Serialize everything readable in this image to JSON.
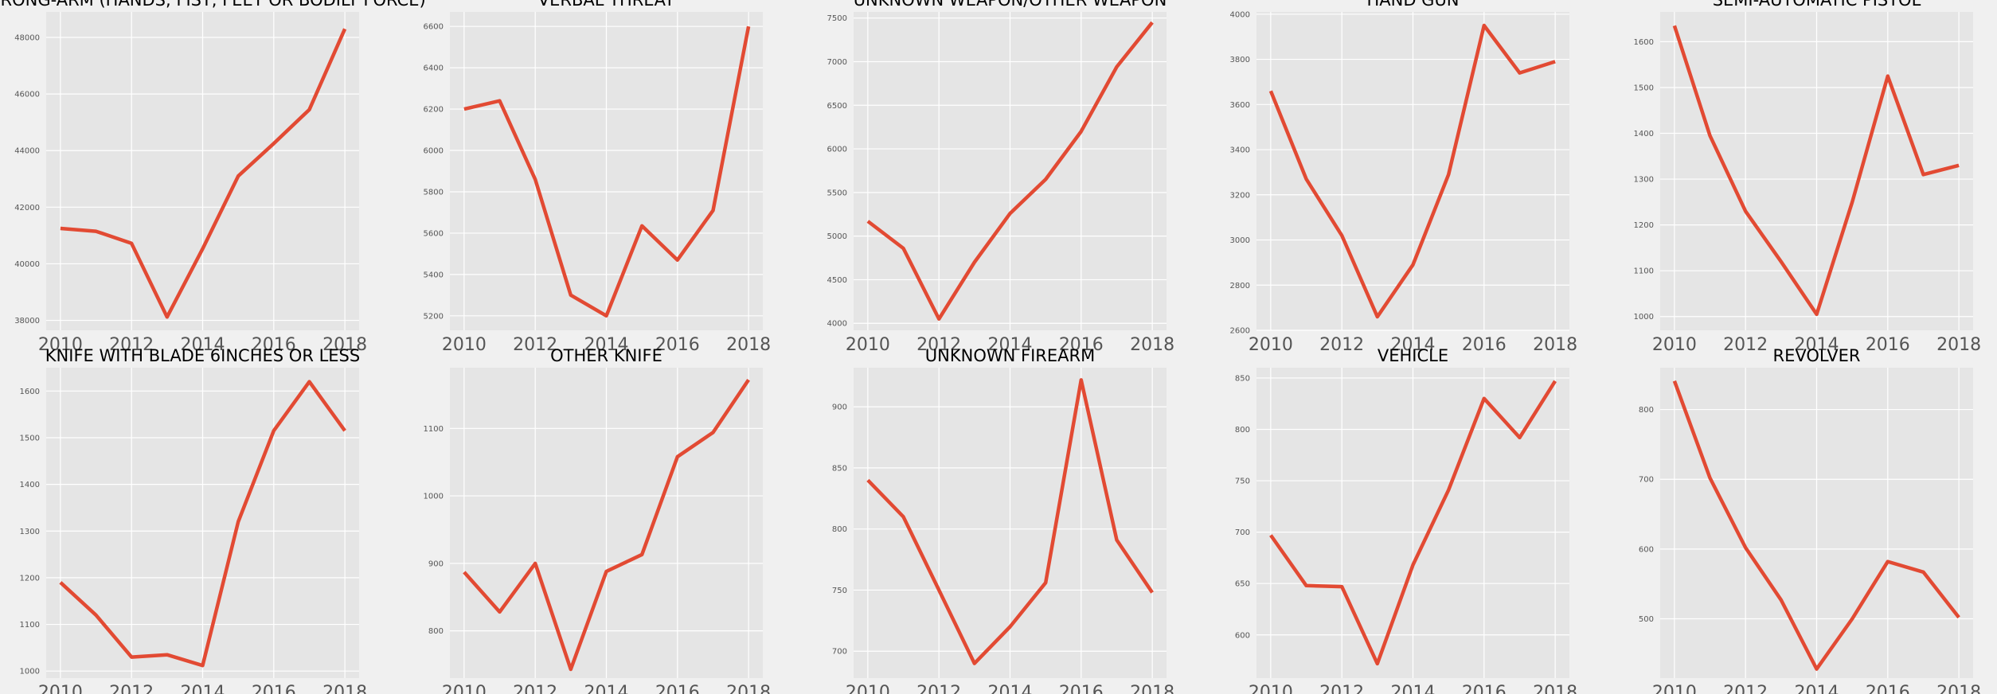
{
  "colors": {
    "figure_bg": "#f0f0f0",
    "axes_bg": "#e5e5e5",
    "grid": "#ffffff",
    "line": "#e24a33"
  },
  "chart_data": [
    {
      "type": "line",
      "title": "STRONG-ARM (HANDS, FIST, FEET OR BODILY FORCE)",
      "x": [
        2010,
        2011,
        2012,
        2013,
        2014,
        2015,
        2016,
        2017,
        2018
      ],
      "values": [
        41250,
        41150,
        40720,
        38120,
        40530,
        43100,
        44250,
        45450,
        48300
      ],
      "xlim": [
        2009.6,
        2018.4
      ],
      "ylim": [
        37650,
        48900
      ],
      "xticks": [
        "2010",
        "2012",
        "2014",
        "2016",
        "2018"
      ],
      "yticks": [
        "38000",
        "40000",
        "42000",
        "44000",
        "46000",
        "48000"
      ],
      "grid": true
    },
    {
      "type": "line",
      "title": "VERBAL THREAT",
      "x": [
        2010,
        2011,
        2012,
        2013,
        2014,
        2015,
        2016,
        2017,
        2018
      ],
      "values": [
        6200,
        6240,
        5860,
        5300,
        5200,
        5635,
        5470,
        5710,
        6600
      ],
      "xlim": [
        2009.6,
        2018.4
      ],
      "ylim": [
        5130,
        6670
      ],
      "xticks": [
        "2010",
        "2012",
        "2014",
        "2016",
        "2018"
      ],
      "yticks": [
        "5200",
        "5400",
        "5600",
        "5800",
        "6000",
        "6200",
        "6400",
        "6600"
      ],
      "grid": true
    },
    {
      "type": "line",
      "title": "UNKNOWN WEAPON/OTHER WEAPON",
      "x": [
        2010,
        2011,
        2012,
        2013,
        2014,
        2015,
        2016,
        2017,
        2018
      ],
      "values": [
        5170,
        4860,
        4050,
        4700,
        5260,
        5650,
        6200,
        6940,
        7450
      ],
      "xlim": [
        2009.6,
        2018.4
      ],
      "ylim": [
        3920,
        7570
      ],
      "xticks": [
        "2010",
        "2012",
        "2014",
        "2016",
        "2018"
      ],
      "yticks": [
        "4000",
        "4500",
        "5000",
        "5500",
        "6000",
        "6500",
        "7000",
        "7500"
      ],
      "grid": true
    },
    {
      "type": "line",
      "title": "HAND GUN",
      "x": [
        2010,
        2011,
        2012,
        2013,
        2014,
        2015,
        2016,
        2017,
        2018
      ],
      "values": [
        3660,
        3270,
        3020,
        2660,
        2890,
        3290,
        3950,
        3740,
        3790
      ],
      "xlim": [
        2009.6,
        2018.4
      ],
      "ylim": [
        2600,
        4010
      ],
      "xticks": [
        "2010",
        "2012",
        "2014",
        "2016",
        "2018"
      ],
      "yticks": [
        "2600",
        "2800",
        "3000",
        "3200",
        "3400",
        "3600",
        "3800",
        "4000"
      ],
      "grid": true
    },
    {
      "type": "line",
      "title": "SEMI-AUTOMATIC PISTOL",
      "x": [
        2010,
        2011,
        2012,
        2013,
        2014,
        2015,
        2016,
        2017,
        2018
      ],
      "values": [
        1635,
        1395,
        1230,
        1120,
        1005,
        1250,
        1525,
        1310,
        1330
      ],
      "xlim": [
        2009.6,
        2018.4
      ],
      "ylim": [
        970,
        1665
      ],
      "xticks": [
        "2010",
        "2012",
        "2014",
        "2016",
        "2018"
      ],
      "yticks": [
        "1000",
        "1100",
        "1200",
        "1300",
        "1400",
        "1500",
        "1600"
      ],
      "grid": true
    },
    {
      "type": "line",
      "title": "KNIFE WITH BLADE 6INCHES OR LESS",
      "x": [
        2010,
        2011,
        2012,
        2013,
        2014,
        2015,
        2016,
        2017,
        2018
      ],
      "values": [
        1190,
        1120,
        1030,
        1035,
        1012,
        1320,
        1515,
        1620,
        1515
      ],
      "xlim": [
        2009.6,
        2018.4
      ],
      "ylim": [
        985,
        1650
      ],
      "xticks": [
        "2010",
        "2012",
        "2014",
        "2016",
        "2018"
      ],
      "yticks": [
        "1000",
        "1100",
        "1200",
        "1300",
        "1400",
        "1500",
        "1600"
      ],
      "grid": true
    },
    {
      "type": "line",
      "title": "OTHER KNIFE",
      "x": [
        2010,
        2011,
        2012,
        2013,
        2014,
        2015,
        2016,
        2017,
        2018
      ],
      "values": [
        887,
        828,
        900,
        743,
        888,
        913,
        1058,
        1094,
        1172
      ],
      "xlim": [
        2009.6,
        2018.4
      ],
      "ylim": [
        730,
        1190
      ],
      "xticks": [
        "2010",
        "2012",
        "2014",
        "2016",
        "2018"
      ],
      "yticks": [
        "800",
        "900",
        "1000",
        "1100"
      ],
      "grid": true
    },
    {
      "type": "line",
      "title": "UNKNOWN FIREARM",
      "x": [
        2010,
        2011,
        2012,
        2013,
        2014,
        2015,
        2016,
        2017,
        2018
      ],
      "values": [
        840,
        810,
        750,
        690,
        720,
        756,
        922,
        791,
        748
      ],
      "xlim": [
        2009.6,
        2018.4
      ],
      "ylim": [
        678,
        932
      ],
      "xticks": [
        "2010",
        "2012",
        "2014",
        "2016",
        "2018"
      ],
      "yticks": [
        "700",
        "750",
        "800",
        "850",
        "900"
      ],
      "grid": true
    },
    {
      "type": "line",
      "title": "VEHICLE",
      "x": [
        2010,
        2011,
        2012,
        2013,
        2014,
        2015,
        2016,
        2017,
        2018
      ],
      "values": [
        697,
        648,
        647,
        572,
        668,
        741,
        830,
        792,
        847
      ],
      "xlim": [
        2009.6,
        2018.4
      ],
      "ylim": [
        558,
        860
      ],
      "xticks": [
        "2010",
        "2012",
        "2014",
        "2016",
        "2018"
      ],
      "yticks": [
        "600",
        "650",
        "700",
        "750",
        "800",
        "850"
      ],
      "grid": true
    },
    {
      "type": "line",
      "title": "REVOLVER",
      "x": [
        2010,
        2011,
        2012,
        2013,
        2014,
        2015,
        2016,
        2017,
        2018
      ],
      "values": [
        841,
        702,
        602,
        527,
        428,
        500,
        582,
        567,
        502
      ],
      "xlim": [
        2009.6,
        2018.4
      ],
      "ylim": [
        415,
        860
      ],
      "xticks": [
        "2010",
        "2012",
        "2014",
        "2016",
        "2018"
      ],
      "yticks": [
        "500",
        "600",
        "700",
        "800"
      ],
      "grid": true
    }
  ]
}
